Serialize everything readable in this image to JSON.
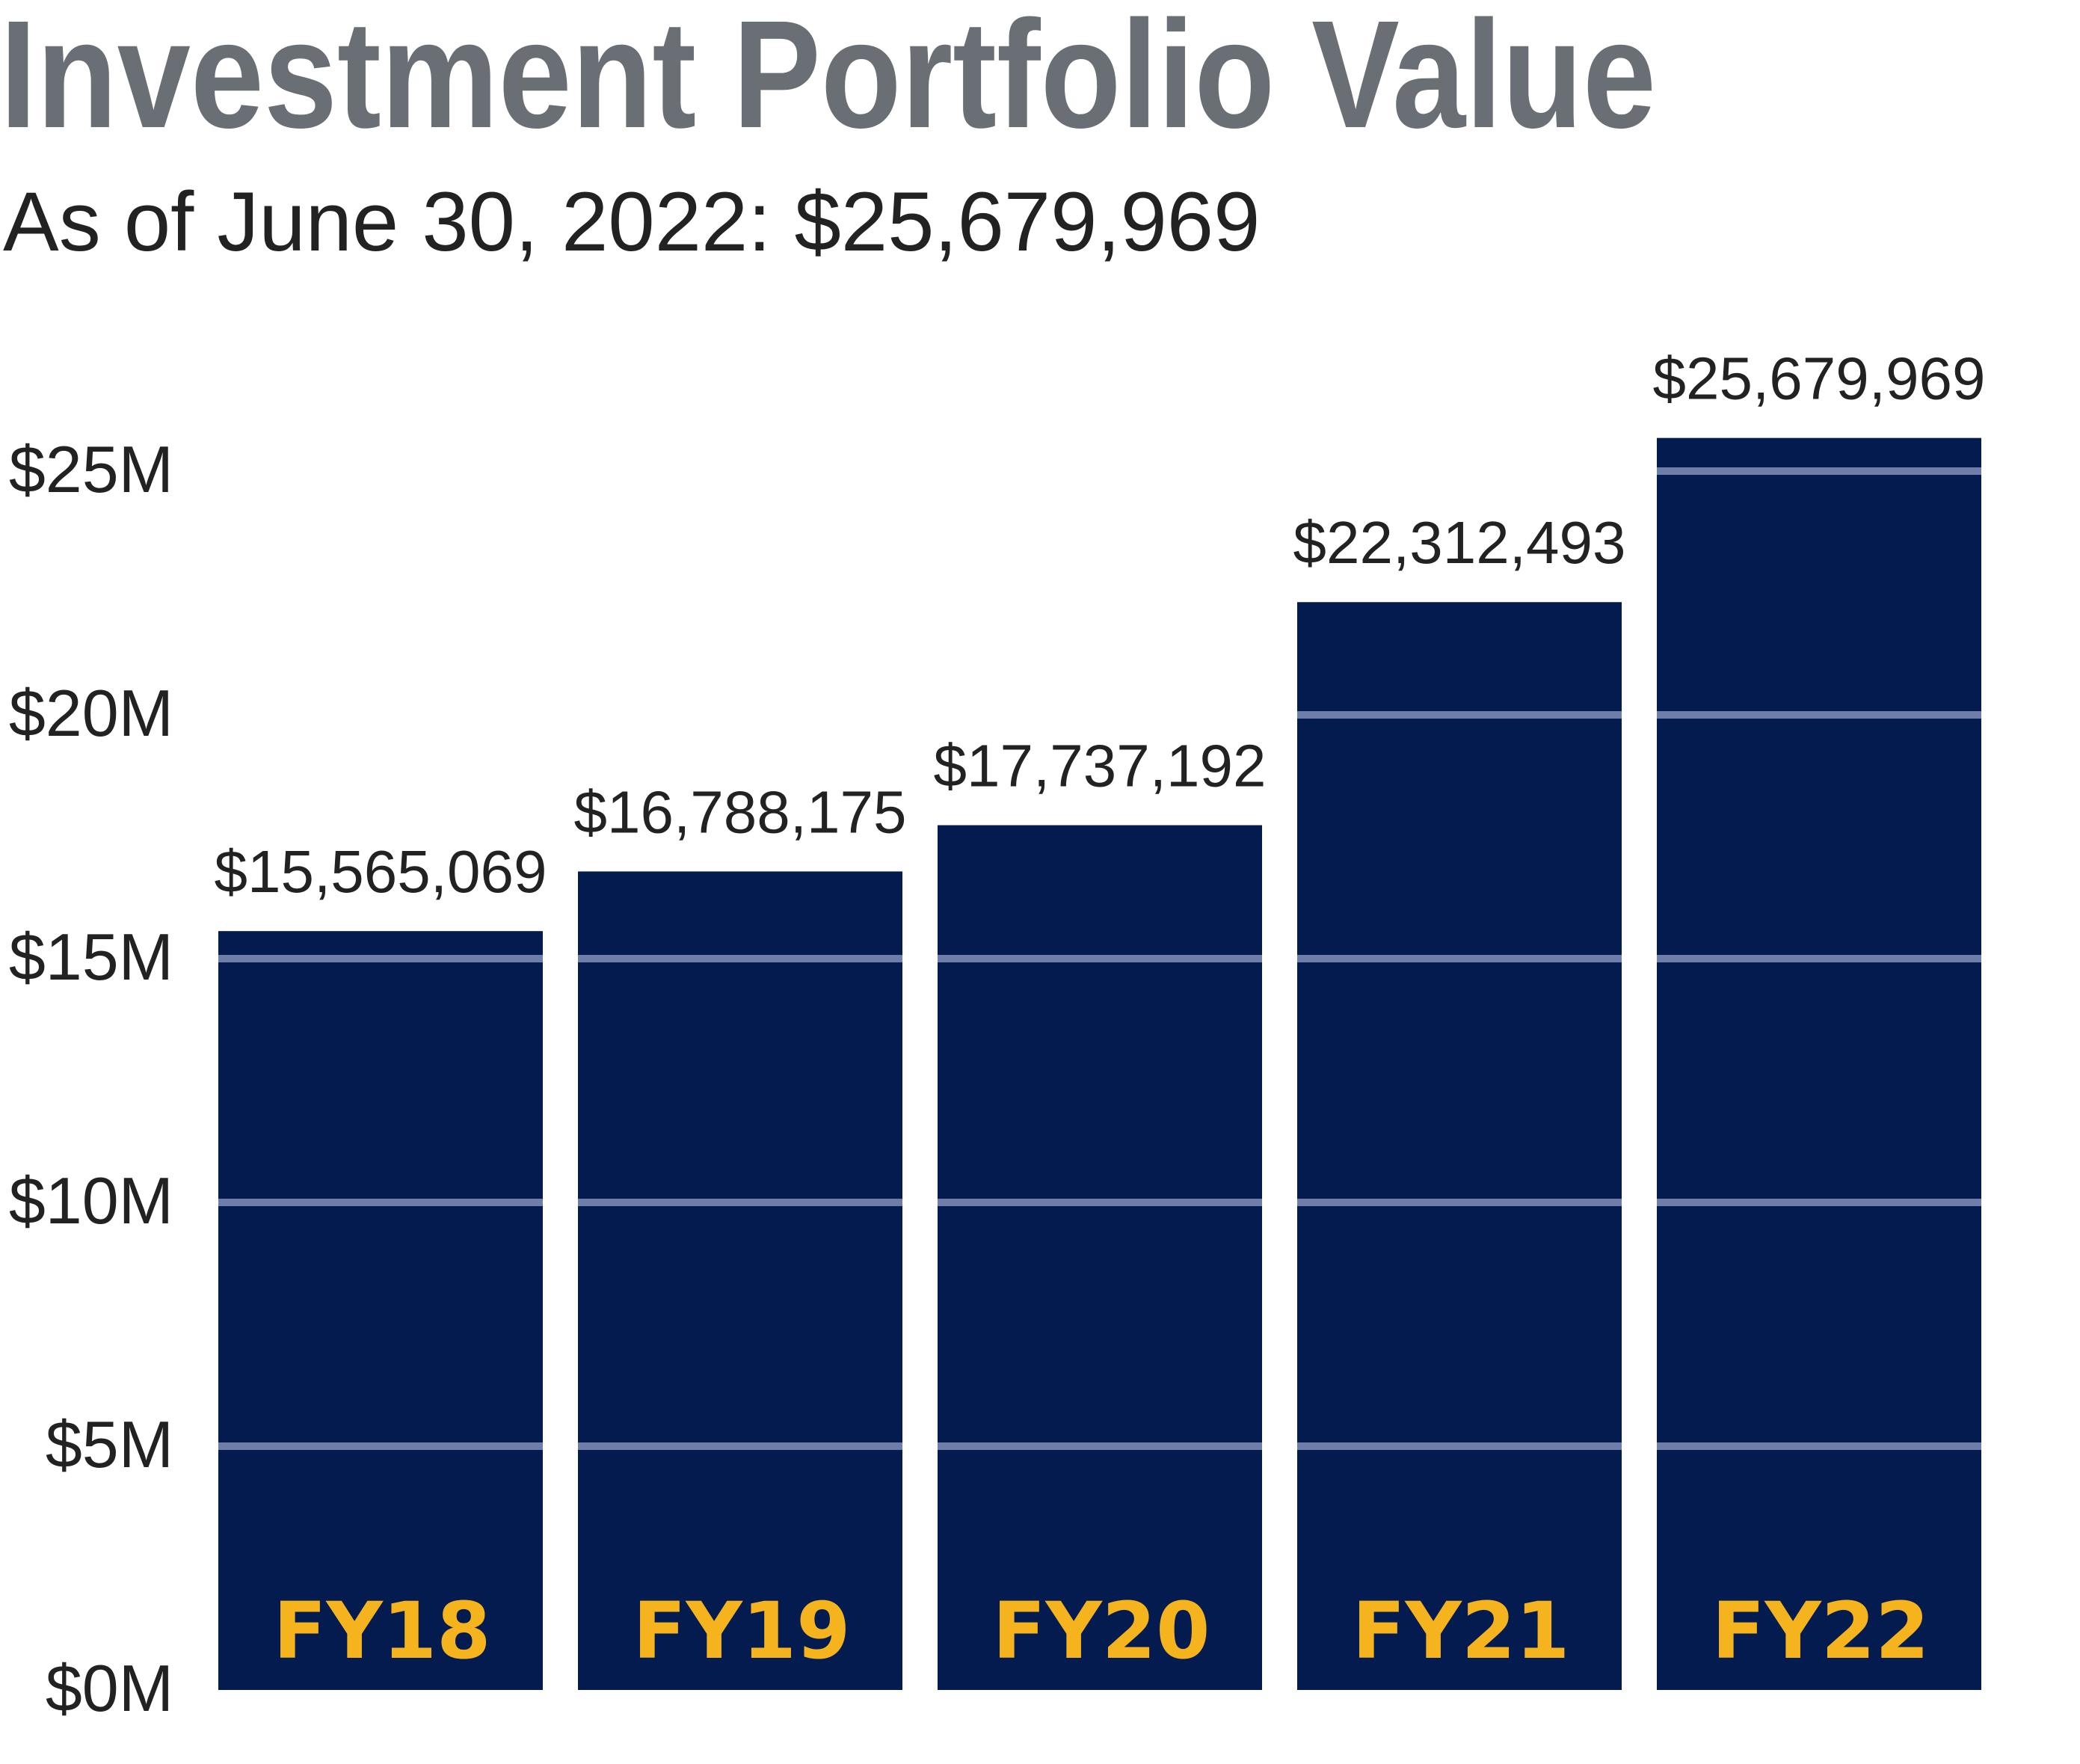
{
  "chart_data": {
    "type": "bar",
    "title": "Investment Portfolio Value",
    "subtitle": "As of June 30, 2022: $25,679,969",
    "categories": [
      "FY18",
      "FY19",
      "FY20",
      "FY21",
      "FY22"
    ],
    "values": [
      15565069,
      16788175,
      17737192,
      22312493,
      25679969
    ],
    "value_labels": [
      "$15,565,069",
      "$16,788,175",
      "$17,737,192",
      "$22,312,493",
      "$25,679,969"
    ],
    "ylim": [
      0,
      25000000
    ],
    "yticks": [
      0,
      5000000,
      10000000,
      15000000,
      20000000,
      25000000
    ],
    "ytick_labels": [
      "$0M",
      "$5M",
      "$10M",
      "$15M",
      "$20M",
      "$25M"
    ],
    "grid": true,
    "xlabel": "",
    "ylabel": "",
    "colors": {
      "bar": "#031b4e",
      "gridline": "#6f7ea8",
      "category_label": "#f5b41e",
      "title": "#6a6e75",
      "text": "#222222"
    }
  }
}
